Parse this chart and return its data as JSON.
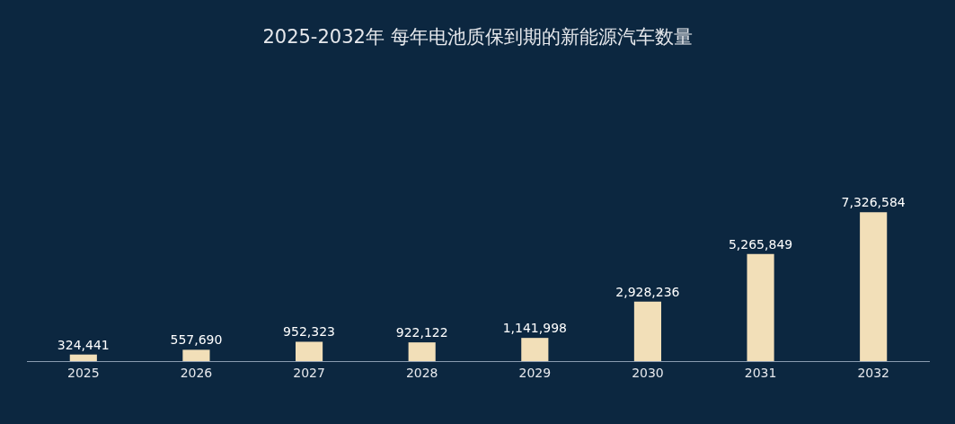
{
  "chart_data": {
    "type": "bar",
    "title": "2025-2032年 每年电池质保到期的新能源汽车数量",
    "categories": [
      "2025",
      "2026",
      "2027",
      "2028",
      "2029",
      "2030",
      "2031",
      "2032"
    ],
    "values": [
      324441,
      557690,
      952323,
      922122,
      1141998,
      2928236,
      5265849,
      7326584
    ],
    "value_labels": [
      "324,441",
      "557,690",
      "952,323",
      "922,122",
      "1,141,998",
      "2,928,236",
      "5,265,849",
      "7,326,584"
    ],
    "color": "#f2dfb8",
    "grid": false
  }
}
